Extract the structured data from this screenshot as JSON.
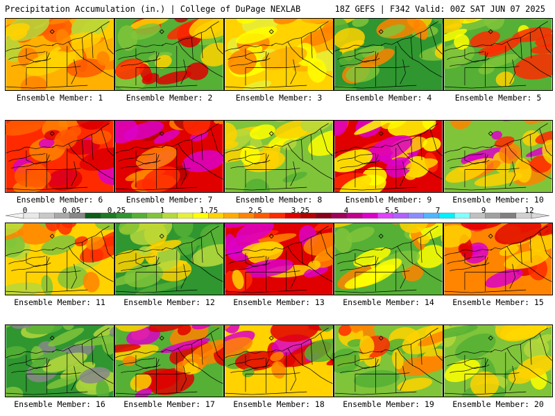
{
  "header": {
    "left": "Precipitation Accumulation (in.) | College of DuPage NEXLAB",
    "right": "18Z GEFS | F342 Valid: 00Z SAT JUN 07 2025"
  },
  "legend": {
    "labels": [
      "0",
      "0.05",
      "0.25",
      "1",
      "1.75",
      "2.5",
      "3.25",
      "4",
      "5.5",
      "7",
      "9",
      "12"
    ],
    "colors": [
      "#e8e8e8",
      "#c8c8c8",
      "#a8a8a8",
      "#888888",
      "#0a5e18",
      "#1c7a22",
      "#2f9630",
      "#55b035",
      "#80c43a",
      "#b5d83c",
      "#e6f03a",
      "#ffff00",
      "#ffd200",
      "#ffaa00",
      "#ff8400",
      "#ff5a00",
      "#ff2a00",
      "#e00000",
      "#b40000",
      "#8a0018",
      "#a0005a",
      "#c0008c",
      "#dc00c8",
      "#e040ff",
      "#b060ff",
      "#8c8cff",
      "#50b4ff",
      "#00f0ff",
      "#80ffff",
      "#c0c0c0",
      "#a0a0a0",
      "#808080",
      "#d0d0d0"
    ]
  },
  "members": [
    {
      "label": "Ensemble Member: 1",
      "palette": [
        "#ffb000",
        "#ffd200",
        "#ff8400",
        "#ff5a00",
        "#b5d83c"
      ]
    },
    {
      "label": "Ensemble Member: 2",
      "palette": [
        "#55b035",
        "#80c43a",
        "#ffd200",
        "#ff2a00",
        "#e00000"
      ]
    },
    {
      "label": "Ensemble Member: 3",
      "palette": [
        "#ffd200",
        "#ffb000",
        "#ff8400",
        "#ffff00",
        "#e6f03a"
      ]
    },
    {
      "label": "Ensemble Member: 4",
      "palette": [
        "#2f9630",
        "#55b035",
        "#80c43a",
        "#ffd200",
        "#ff8400"
      ]
    },
    {
      "label": "Ensemble Member: 5",
      "palette": [
        "#55b035",
        "#80c43a",
        "#ffff00",
        "#ffd200",
        "#ff2a00"
      ]
    },
    {
      "label": "Ensemble Member: 6",
      "palette": [
        "#ff2a00",
        "#ff5a00",
        "#ff8400",
        "#dc00c8",
        "#e00000"
      ]
    },
    {
      "label": "Ensemble Member: 7",
      "palette": [
        "#e00000",
        "#b40000",
        "#ff2a00",
        "#dc00c8",
        "#ff8400"
      ]
    },
    {
      "label": "Ensemble Member: 8",
      "palette": [
        "#80c43a",
        "#b5d83c",
        "#ffff00",
        "#ffd200",
        "#55b035"
      ]
    },
    {
      "label": "Ensemble Member: 9",
      "palette": [
        "#e00000",
        "#ff2a00",
        "#dc00c8",
        "#ffd200",
        "#ffff00"
      ]
    },
    {
      "label": "Ensemble Member: 10",
      "palette": [
        "#80c43a",
        "#ffd200",
        "#ff8400",
        "#ff2a00",
        "#dc00c8"
      ]
    },
    {
      "label": "Ensemble Member: 11",
      "palette": [
        "#ffd200",
        "#ff8400",
        "#ff2a00",
        "#80c43a",
        "#b5d83c"
      ]
    },
    {
      "label": "Ensemble Member: 12",
      "palette": [
        "#2f9630",
        "#55b035",
        "#80c43a",
        "#b5d83c",
        "#ffd200"
      ]
    },
    {
      "label": "Ensemble Member: 13",
      "palette": [
        "#e00000",
        "#ff2a00",
        "#ff8400",
        "#dc00c8",
        "#ffd200"
      ]
    },
    {
      "label": "Ensemble Member: 14",
      "palette": [
        "#55b035",
        "#80c43a",
        "#ffff00",
        "#ffd200",
        "#ff8400"
      ]
    },
    {
      "label": "Ensemble Member: 15",
      "palette": [
        "#ff8400",
        "#ff2a00",
        "#e00000",
        "#dc00c8",
        "#ffd200"
      ]
    },
    {
      "label": "Ensemble Member: 16",
      "palette": [
        "#2f9630",
        "#55b035",
        "#80c43a",
        "#b5d83c",
        "#888888"
      ]
    },
    {
      "label": "Ensemble Member: 17",
      "palette": [
        "#55b035",
        "#ff8400",
        "#e00000",
        "#dc00c8",
        "#ffd200"
      ]
    },
    {
      "label": "Ensemble Member: 18",
      "palette": [
        "#ffd200",
        "#ff8400",
        "#e00000",
        "#55b035",
        "#dc00c8"
      ]
    },
    {
      "label": "Ensemble Member: 19",
      "palette": [
        "#80c43a",
        "#ffd200",
        "#ff8400",
        "#ff2a00",
        "#55b035"
      ]
    },
    {
      "label": "Ensemble Member: 20",
      "palette": [
        "#80c43a",
        "#b5d83c",
        "#ffff00",
        "#ffd200",
        "#55b035"
      ]
    }
  ]
}
